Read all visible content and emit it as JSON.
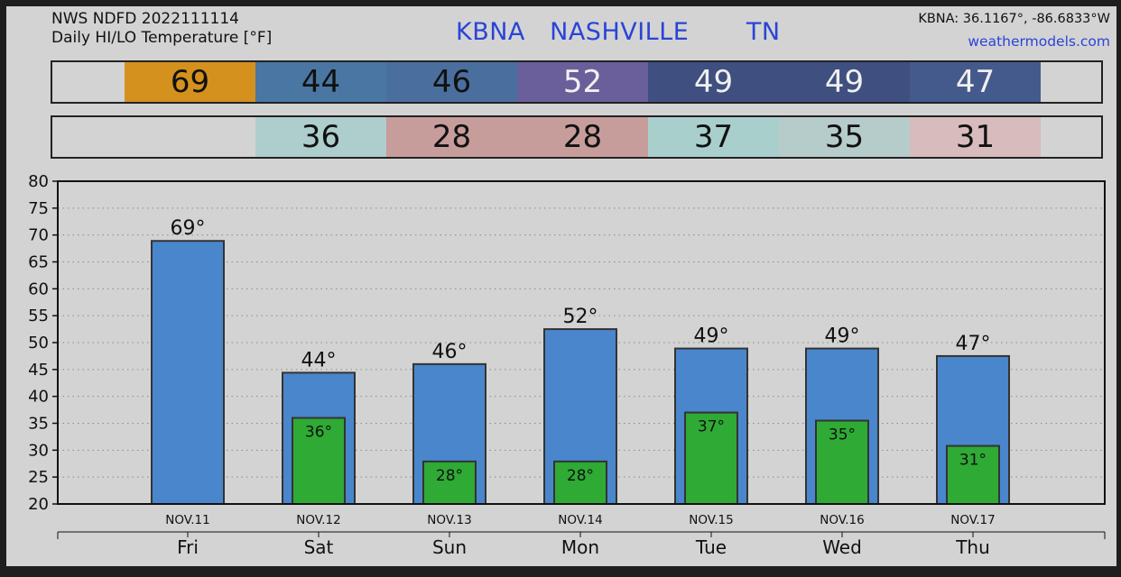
{
  "header": {
    "source": "NWS NDFD 2022111114",
    "subtitle": "Daily HI/LO Temperature [°F]",
    "station": "KBNA   NASHVILLE       TN",
    "coords": "KBNA: 36.1167°, -86.6833°W",
    "site": "weathermodels.com"
  },
  "hi_strip": [
    {
      "value": "69",
      "color": "#d4911e",
      "text_color": "#111111"
    },
    {
      "value": "44",
      "color": "#4a76a3",
      "text_color": "#111111"
    },
    {
      "value": "46",
      "color": "#4a6f9e",
      "text_color": "#111111"
    },
    {
      "value": "52",
      "color": "#6a5f9a",
      "text_color": "#f0f0f0"
    },
    {
      "value": "49",
      "color": "#3f4f80",
      "text_color": "#f0f0f0"
    },
    {
      "value": "49",
      "color": "#3f4f80",
      "text_color": "#f0f0f0"
    },
    {
      "value": "47",
      "color": "#455a8c",
      "text_color": "#f0f0f0"
    }
  ],
  "lo_strip": [
    {
      "value": "",
      "color": "#d3d3d3",
      "text_color": "#111111"
    },
    {
      "value": "36",
      "color": "#aecdcd",
      "text_color": "#111111"
    },
    {
      "value": "28",
      "color": "#c79d9c",
      "text_color": "#111111"
    },
    {
      "value": "28",
      "color": "#c79d9c",
      "text_color": "#111111"
    },
    {
      "value": "37",
      "color": "#a9cfcd",
      "text_color": "#111111"
    },
    {
      "value": "35",
      "color": "#b6ccca",
      "text_color": "#111111"
    },
    {
      "value": "31",
      "color": "#d7bbbd",
      "text_color": "#111111"
    }
  ],
  "chart_data": {
    "type": "bar",
    "categories": [
      "Fri",
      "Sat",
      "Sun",
      "Mon",
      "Tue",
      "Wed",
      "Thu"
    ],
    "dates": [
      "NOV.11",
      "NOV.12",
      "NOV.13",
      "NOV.14",
      "NOV.15",
      "NOV.16",
      "NOV.17"
    ],
    "series": [
      {
        "values": [
          68.9,
          44.4,
          46.0,
          52.5,
          48.9,
          48.9,
          47.5
        ],
        "labels": [
          "69°",
          "44°",
          "46°",
          "52°",
          "49°",
          "49°",
          "47°"
        ],
        "color": "#4a86cc"
      },
      {
        "values": [
          null,
          36.0,
          27.9,
          27.9,
          37.0,
          35.5,
          30.8
        ],
        "labels": [
          "",
          "36°",
          "28°",
          "28°",
          "37°",
          "35°",
          "31°"
        ],
        "color": "#2eaa35"
      }
    ],
    "ylim": [
      20,
      80
    ],
    "yticks": [
      20,
      25,
      30,
      35,
      40,
      45,
      50,
      55,
      60,
      65,
      70,
      75,
      80
    ],
    "grid": true,
    "colors": {
      "bar_border": "#333333",
      "frame": "#d3d3d3",
      "axis": "#111111"
    }
  }
}
